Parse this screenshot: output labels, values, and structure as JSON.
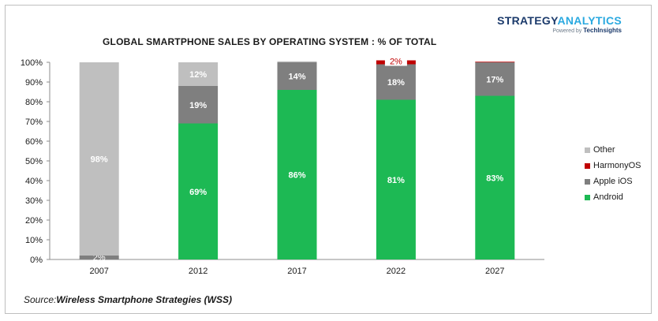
{
  "brand": {
    "name_part1": "STRATEGY",
    "name_part2": "ANALYTICS",
    "tagline_prefix": "Powered by",
    "tagline_company": "TechInsights"
  },
  "source": {
    "prefix": "Source:",
    "text": "Wireless Smartphone Strategies (WSS)"
  },
  "colors": {
    "Android": "#1db954",
    "Apple iOS": "#7f7f7f",
    "HarmonyOS": "#c00000",
    "Other": "#bfbfbf"
  },
  "chart_data": {
    "type": "bar",
    "stacked": true,
    "title": "GLOBAL SMARTPHONE SALES BY OPERATING SYSTEM : % OF TOTAL",
    "categories": [
      "2007",
      "2012",
      "2017",
      "2022",
      "2027"
    ],
    "series": [
      {
        "name": "Android",
        "values": [
          0,
          69,
          86,
          81,
          83
        ],
        "labels": [
          "",
          "69%",
          "86%",
          "81%",
          "83%"
        ]
      },
      {
        "name": "Apple iOS",
        "values": [
          2,
          19,
          14,
          18,
          17
        ],
        "labels": [
          "2%",
          "19%",
          "14%",
          "18%",
          "17%"
        ]
      },
      {
        "name": "HarmonyOS",
        "values": [
          0,
          0,
          0,
          2,
          0.3
        ],
        "labels": [
          "",
          "",
          "",
          "2%",
          ""
        ]
      },
      {
        "name": "Other",
        "values": [
          98,
          12,
          0.5,
          0,
          0
        ],
        "labels": [
          "98%",
          "12%",
          "",
          "",
          ""
        ]
      }
    ],
    "yticks": [
      "0%",
      "10%",
      "20%",
      "30%",
      "40%",
      "50%",
      "60%",
      "70%",
      "80%",
      "90%",
      "100%"
    ],
    "ylim": [
      0,
      100
    ],
    "grid": false,
    "legend_order": [
      "Other",
      "HarmonyOS",
      "Apple iOS",
      "Android"
    ],
    "legend_position": "right"
  }
}
